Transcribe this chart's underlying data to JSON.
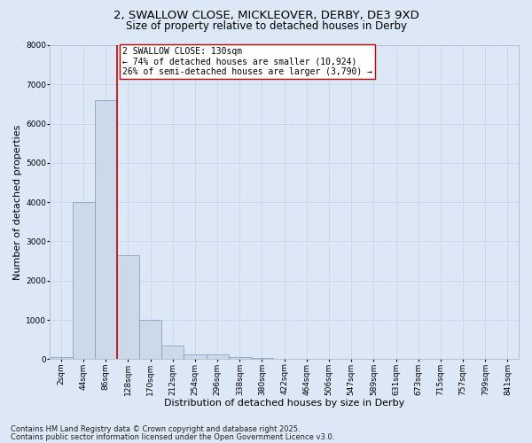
{
  "title_line1": "2, SWALLOW CLOSE, MICKLEOVER, DERBY, DE3 9XD",
  "title_line2": "Size of property relative to detached houses in Derby",
  "xlabel": "Distribution of detached houses by size in Derby",
  "ylabel": "Number of detached properties",
  "categories": [
    "2sqm",
    "44sqm",
    "86sqm",
    "128sqm",
    "170sqm",
    "212sqm",
    "254sqm",
    "296sqm",
    "338sqm",
    "380sqm",
    "422sqm",
    "464sqm",
    "506sqm",
    "547sqm",
    "589sqm",
    "631sqm",
    "673sqm",
    "715sqm",
    "757sqm",
    "799sqm",
    "841sqm"
  ],
  "values": [
    50,
    4000,
    6600,
    2650,
    1000,
    350,
    130,
    120,
    50,
    20,
    0,
    0,
    0,
    0,
    0,
    0,
    0,
    0,
    0,
    0,
    0
  ],
  "bar_color": "#ccd9e8",
  "bar_edge_color": "#7799bb",
  "bar_linewidth": 0.5,
  "vline_x": 2.5,
  "vline_color": "#cc0000",
  "vline_linewidth": 1.2,
  "ylim": [
    0,
    8000
  ],
  "yticks": [
    0,
    1000,
    2000,
    3000,
    4000,
    5000,
    6000,
    7000,
    8000
  ],
  "annotation_text": "2 SWALLOW CLOSE: 130sqm\n← 74% of detached houses are smaller (10,924)\n26% of semi-detached houses are larger (3,790) →",
  "annotation_box_color": "#ffffff",
  "annotation_box_edge": "#cc0000",
  "grid_color": "#c8d8e8",
  "background_color": "#dce8f5",
  "plot_bg_color": "#dce8f5",
  "footer_line1": "Contains HM Land Registry data © Crown copyright and database right 2025.",
  "footer_line2": "Contains public sector information licensed under the Open Government Licence v3.0.",
  "title_fontsize": 9.5,
  "subtitle_fontsize": 8.5,
  "axis_label_fontsize": 8,
  "tick_fontsize": 6.5,
  "annotation_fontsize": 7,
  "footer_fontsize": 6
}
